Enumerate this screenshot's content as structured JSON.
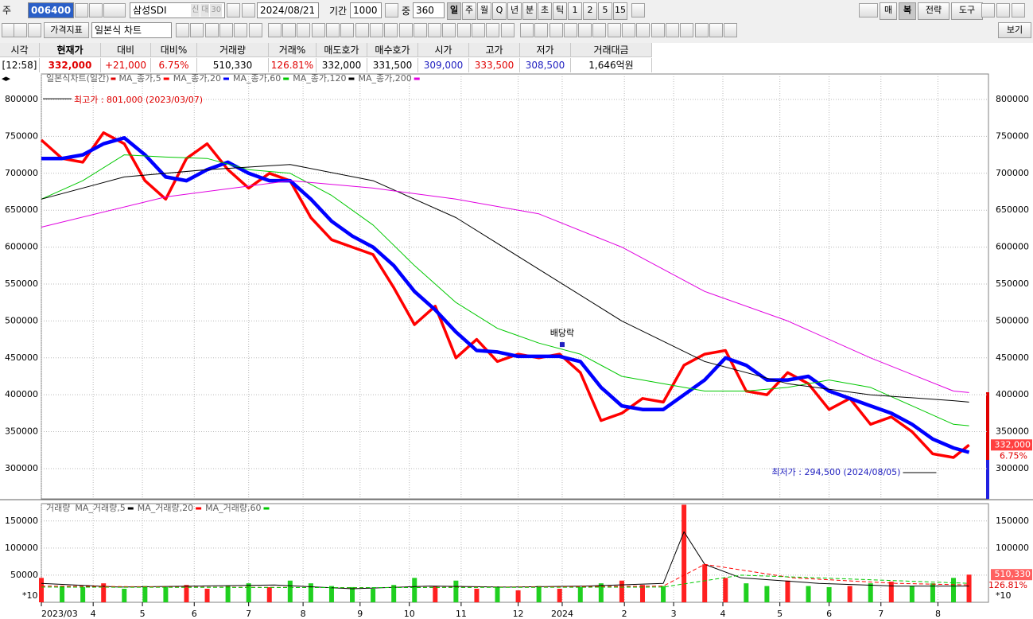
{
  "toolbar": {
    "market": "주",
    "code": "006400",
    "name": "삼성SDI",
    "flags": [
      "신",
      "대",
      "30"
    ],
    "date": "2024/08/21",
    "period_label": "기간",
    "period": "1000",
    "mid_label": "중",
    "mid": "360",
    "periods": [
      "일",
      "주",
      "월",
      "Q",
      "년",
      "분",
      "초",
      "틱",
      "1",
      "2",
      "5",
      "15"
    ],
    "right": [
      "매",
      "복",
      "전략",
      "도구"
    ],
    "indicator": "가격지표",
    "chart_style": "일본식 차트",
    "view": "보기"
  },
  "quote": {
    "headers": [
      "시각",
      "현재가",
      "대비",
      "대비%",
      "거래량",
      "거래%",
      "매도호가",
      "매수호가",
      "시가",
      "고가",
      "저가",
      "거래대금"
    ],
    "values": [
      "[12:58]",
      "332,000",
      "+21,000",
      "6.75%",
      "510,330",
      "126.81%",
      "332,000",
      "331,500",
      "309,000",
      "333,500",
      "308,500",
      "1,646억원"
    ]
  },
  "chart_data": [
    {
      "type": "line",
      "title": "일본식차트(일간)",
      "xlim": [
        0,
        365.5
      ],
      "ylim": [
        259000,
        834500
      ],
      "yticks": [
        300000,
        350000,
        400000,
        450000,
        500000,
        550000,
        600000,
        650000,
        700000,
        750000,
        800000
      ],
      "grid": true,
      "series": [
        {
          "name": "MA_종가,5",
          "color": "#ff0000",
          "width": 3.5,
          "x": [
            0,
            8,
            16,
            24,
            32,
            40,
            48,
            56,
            64,
            72,
            80,
            88,
            96,
            104,
            112,
            120,
            128,
            136,
            144,
            152,
            160,
            168,
            176,
            184,
            192,
            200,
            208,
            216,
            224,
            232,
            240,
            248,
            256,
            264,
            272,
            280,
            288,
            296,
            304,
            312,
            320,
            328,
            336,
            344,
            352,
            358
          ],
          "values": [
            745000,
            720000,
            715000,
            755000,
            740000,
            690000,
            665000,
            720000,
            740000,
            705000,
            680000,
            700000,
            690000,
            640000,
            610000,
            600000,
            590000,
            545000,
            495000,
            520000,
            450000,
            475000,
            445000,
            455000,
            450000,
            455000,
            430000,
            365000,
            375000,
            395000,
            390000,
            440000,
            455000,
            460000,
            405000,
            400000,
            430000,
            415000,
            380000,
            395000,
            360000,
            370000,
            350000,
            320000,
            315000,
            332000
          ]
        },
        {
          "name": "MA_종가,20",
          "color": "#0000ff",
          "width": 4.5,
          "x": [
            0,
            8,
            16,
            24,
            32,
            40,
            48,
            56,
            64,
            72,
            80,
            88,
            96,
            104,
            112,
            120,
            128,
            136,
            144,
            152,
            160,
            168,
            176,
            184,
            192,
            200,
            208,
            216,
            224,
            232,
            240,
            248,
            256,
            264,
            272,
            280,
            288,
            296,
            304,
            312,
            320,
            328,
            336,
            344,
            352,
            358
          ],
          "values": [
            720000,
            720000,
            725000,
            740000,
            748000,
            725000,
            695000,
            690000,
            705000,
            715000,
            700000,
            690000,
            690000,
            665000,
            635000,
            615000,
            600000,
            575000,
            540000,
            515000,
            485000,
            460000,
            458000,
            452000,
            452000,
            452000,
            445000,
            410000,
            385000,
            380000,
            380000,
            400000,
            420000,
            450000,
            440000,
            420000,
            420000,
            425000,
            405000,
            395000,
            385000,
            375000,
            360000,
            340000,
            328000,
            322000
          ]
        },
        {
          "name": "MA_종가,60",
          "color": "#00c800",
          "width": 1,
          "x": [
            0,
            16,
            32,
            48,
            64,
            80,
            96,
            112,
            128,
            144,
            160,
            176,
            192,
            208,
            224,
            240,
            256,
            272,
            288,
            304,
            320,
            336,
            352,
            358
          ],
          "values": [
            665000,
            690000,
            725000,
            722000,
            720000,
            705000,
            700000,
            670000,
            630000,
            575000,
            525000,
            490000,
            470000,
            455000,
            425000,
            415000,
            405000,
            405000,
            410000,
            420000,
            410000,
            385000,
            360000,
            358000
          ]
        },
        {
          "name": "MA_종가,120",
          "color": "#000000",
          "width": 1,
          "x": [
            0,
            32,
            64,
            96,
            128,
            160,
            192,
            224,
            256,
            288,
            320,
            352,
            358
          ],
          "values": [
            665000,
            695000,
            705000,
            712000,
            690000,
            640000,
            570000,
            500000,
            445000,
            415000,
            400000,
            392000,
            390000
          ]
        },
        {
          "name": "MA_종가,200",
          "color": "#e000e0",
          "width": 1,
          "x": [
            0,
            48,
            96,
            128,
            160,
            192,
            224,
            256,
            288,
            320,
            352,
            358
          ],
          "values": [
            627000,
            668000,
            690000,
            680000,
            665000,
            645000,
            600000,
            540000,
            500000,
            450000,
            405000,
            403000
          ]
        }
      ],
      "current": {
        "value": 332000,
        "label": "332,000"
      },
      "change_label": "6.75%",
      "annotations": [
        {
          "text": "최고가 : 801,000 (2023/03/07)",
          "x": 0,
          "y": 801000,
          "side": "right",
          "color": "#e00000"
        },
        {
          "text": "최저가 : 294,500 (2024/08/05)",
          "x": 346,
          "y": 294500,
          "side": "left",
          "color": "#2020c0"
        },
        {
          "text": "배당락",
          "x": 201,
          "y": 468000,
          "side": "top",
          "color": "#000000"
        }
      ]
    },
    {
      "type": "bar",
      "title": "거래량",
      "xlim": [
        0,
        365.5
      ],
      "ylim": [
        0,
        182000
      ],
      "yticks": [
        50000,
        100000,
        150000
      ],
      "grid": true,
      "xticks": [
        {
          "value": 0,
          "label": "2023/03"
        },
        {
          "value": 20,
          "label": "4"
        },
        {
          "value": 39,
          "label": "5"
        },
        {
          "value": 59,
          "label": "6"
        },
        {
          "value": 80,
          "label": "7"
        },
        {
          "value": 101,
          "label": "8"
        },
        {
          "value": 123,
          "label": "9"
        },
        {
          "value": 142,
          "label": "10"
        },
        {
          "value": 162,
          "label": "11"
        },
        {
          "value": 184,
          "label": "12"
        },
        {
          "value": 201,
          "label": "2024"
        },
        {
          "value": 225,
          "label": "2"
        },
        {
          "value": 244,
          "label": "3"
        },
        {
          "value": 263,
          "label": "4"
        },
        {
          "value": 285,
          "label": "5"
        },
        {
          "value": 304,
          "label": "6"
        },
        {
          "value": 324,
          "label": "7"
        },
        {
          "value": 346,
          "label": "8"
        }
      ],
      "x": [
        0,
        8,
        16,
        24,
        32,
        40,
        48,
        56,
        64,
        72,
        80,
        88,
        96,
        104,
        112,
        120,
        128,
        136,
        144,
        152,
        160,
        168,
        176,
        184,
        192,
        200,
        208,
        216,
        224,
        232,
        240,
        248,
        256,
        264,
        272,
        280,
        288,
        296,
        304,
        312,
        320,
        328,
        336,
        344,
        352,
        358
      ],
      "values": [
        45000,
        30000,
        28000,
        35000,
        25000,
        30000,
        28000,
        32000,
        25000,
        30000,
        35000,
        28000,
        40000,
        35000,
        30000,
        28000,
        25000,
        32000,
        45000,
        30000,
        40000,
        25000,
        28000,
        22000,
        30000,
        25000,
        28000,
        35000,
        40000,
        32000,
        30000,
        180000,
        70000,
        45000,
        35000,
        30000,
        40000,
        30000,
        28000,
        30000,
        35000,
        38000,
        30000,
        35000,
        45000,
        51033
      ],
      "up_color": "#ff2020",
      "down_color": "#20d020",
      "series": [
        {
          "name": "MA_거래량,5",
          "color": "#000000",
          "width": 1,
          "x": [
            0,
            30,
            60,
            90,
            120,
            150,
            180,
            210,
            240,
            248,
            256,
            270,
            300,
            330,
            358
          ],
          "values": [
            35000,
            28000,
            30000,
            32000,
            25000,
            30000,
            28000,
            30000,
            35000,
            130000,
            70000,
            45000,
            35000,
            30000,
            30000
          ]
        },
        {
          "name": "MA_거래량,20",
          "color": "#ff0000",
          "width": 1,
          "dash": true,
          "x": [
            0,
            60,
            120,
            180,
            240,
            256,
            290,
            330,
            358
          ],
          "values": [
            30000,
            28000,
            27000,
            28000,
            30000,
            70000,
            45000,
            35000,
            32000
          ]
        },
        {
          "name": "MA_거래량,60",
          "color": "#00c800",
          "width": 1,
          "dash": true,
          "x": [
            0,
            120,
            240,
            270,
            300,
            358
          ],
          "values": [
            28000,
            27000,
            28000,
            50000,
            45000,
            35000
          ]
        }
      ],
      "current": {
        "value": 51033,
        "label": "510,330"
      },
      "change_label": "126.81%",
      "scale_note": "*10"
    }
  ]
}
